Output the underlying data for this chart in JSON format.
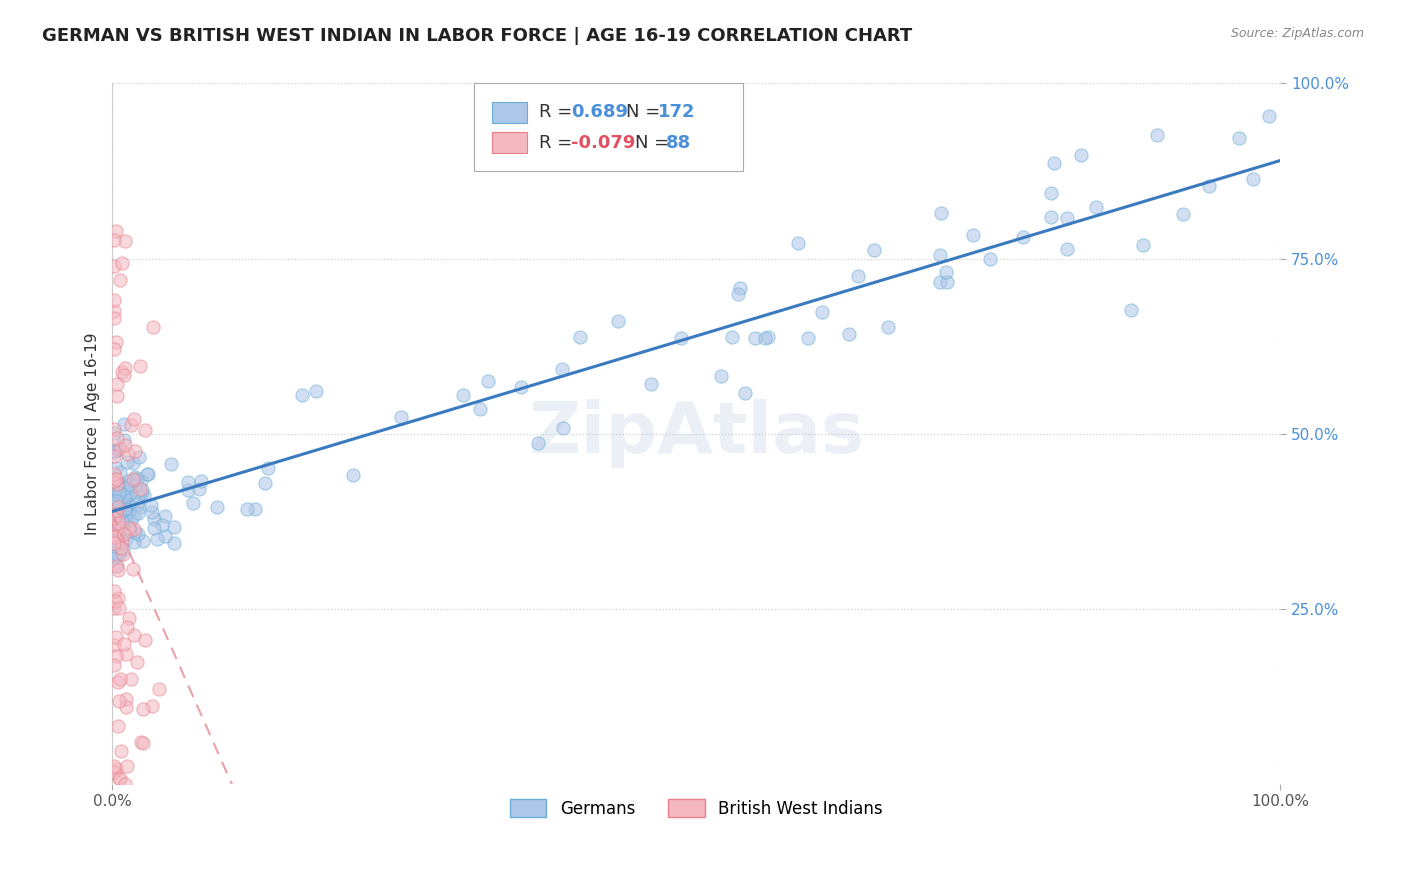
{
  "title": "GERMAN VS BRITISH WEST INDIAN IN LABOR FORCE | AGE 16-19 CORRELATION CHART",
  "source_text": "Source: ZipAtlas.com",
  "ylabel": "In Labor Force | Age 16-19",
  "xlim": [
    0,
    1
  ],
  "ylim": [
    0,
    1
  ],
  "xticks": [
    0.0,
    1.0
  ],
  "yticks": [
    0.25,
    0.5,
    0.75,
    1.0
  ],
  "xticklabels": [
    "0.0%",
    "100.0%"
  ],
  "yticklabels": [
    "25.0%",
    "50.0%",
    "75.0%",
    "100.0%"
  ],
  "german_color": "#aec6e8",
  "bwi_color": "#f4b8c1",
  "german_edge": "#6aaed6",
  "bwi_edge": "#e87f8a",
  "trendline_german_color": "#3a7abf",
  "trendline_bwi_color": "#e8909a",
  "watermark": "ZipAtlas",
  "background_color": "#ffffff",
  "grid_color": "#cccccc",
  "seed": 42,
  "title_fontsize": 13,
  "axis_label_fontsize": 11,
  "tick_fontsize": 11,
  "legend_fontsize": 13,
  "dot_size": 90,
  "dot_alpha": 0.55
}
